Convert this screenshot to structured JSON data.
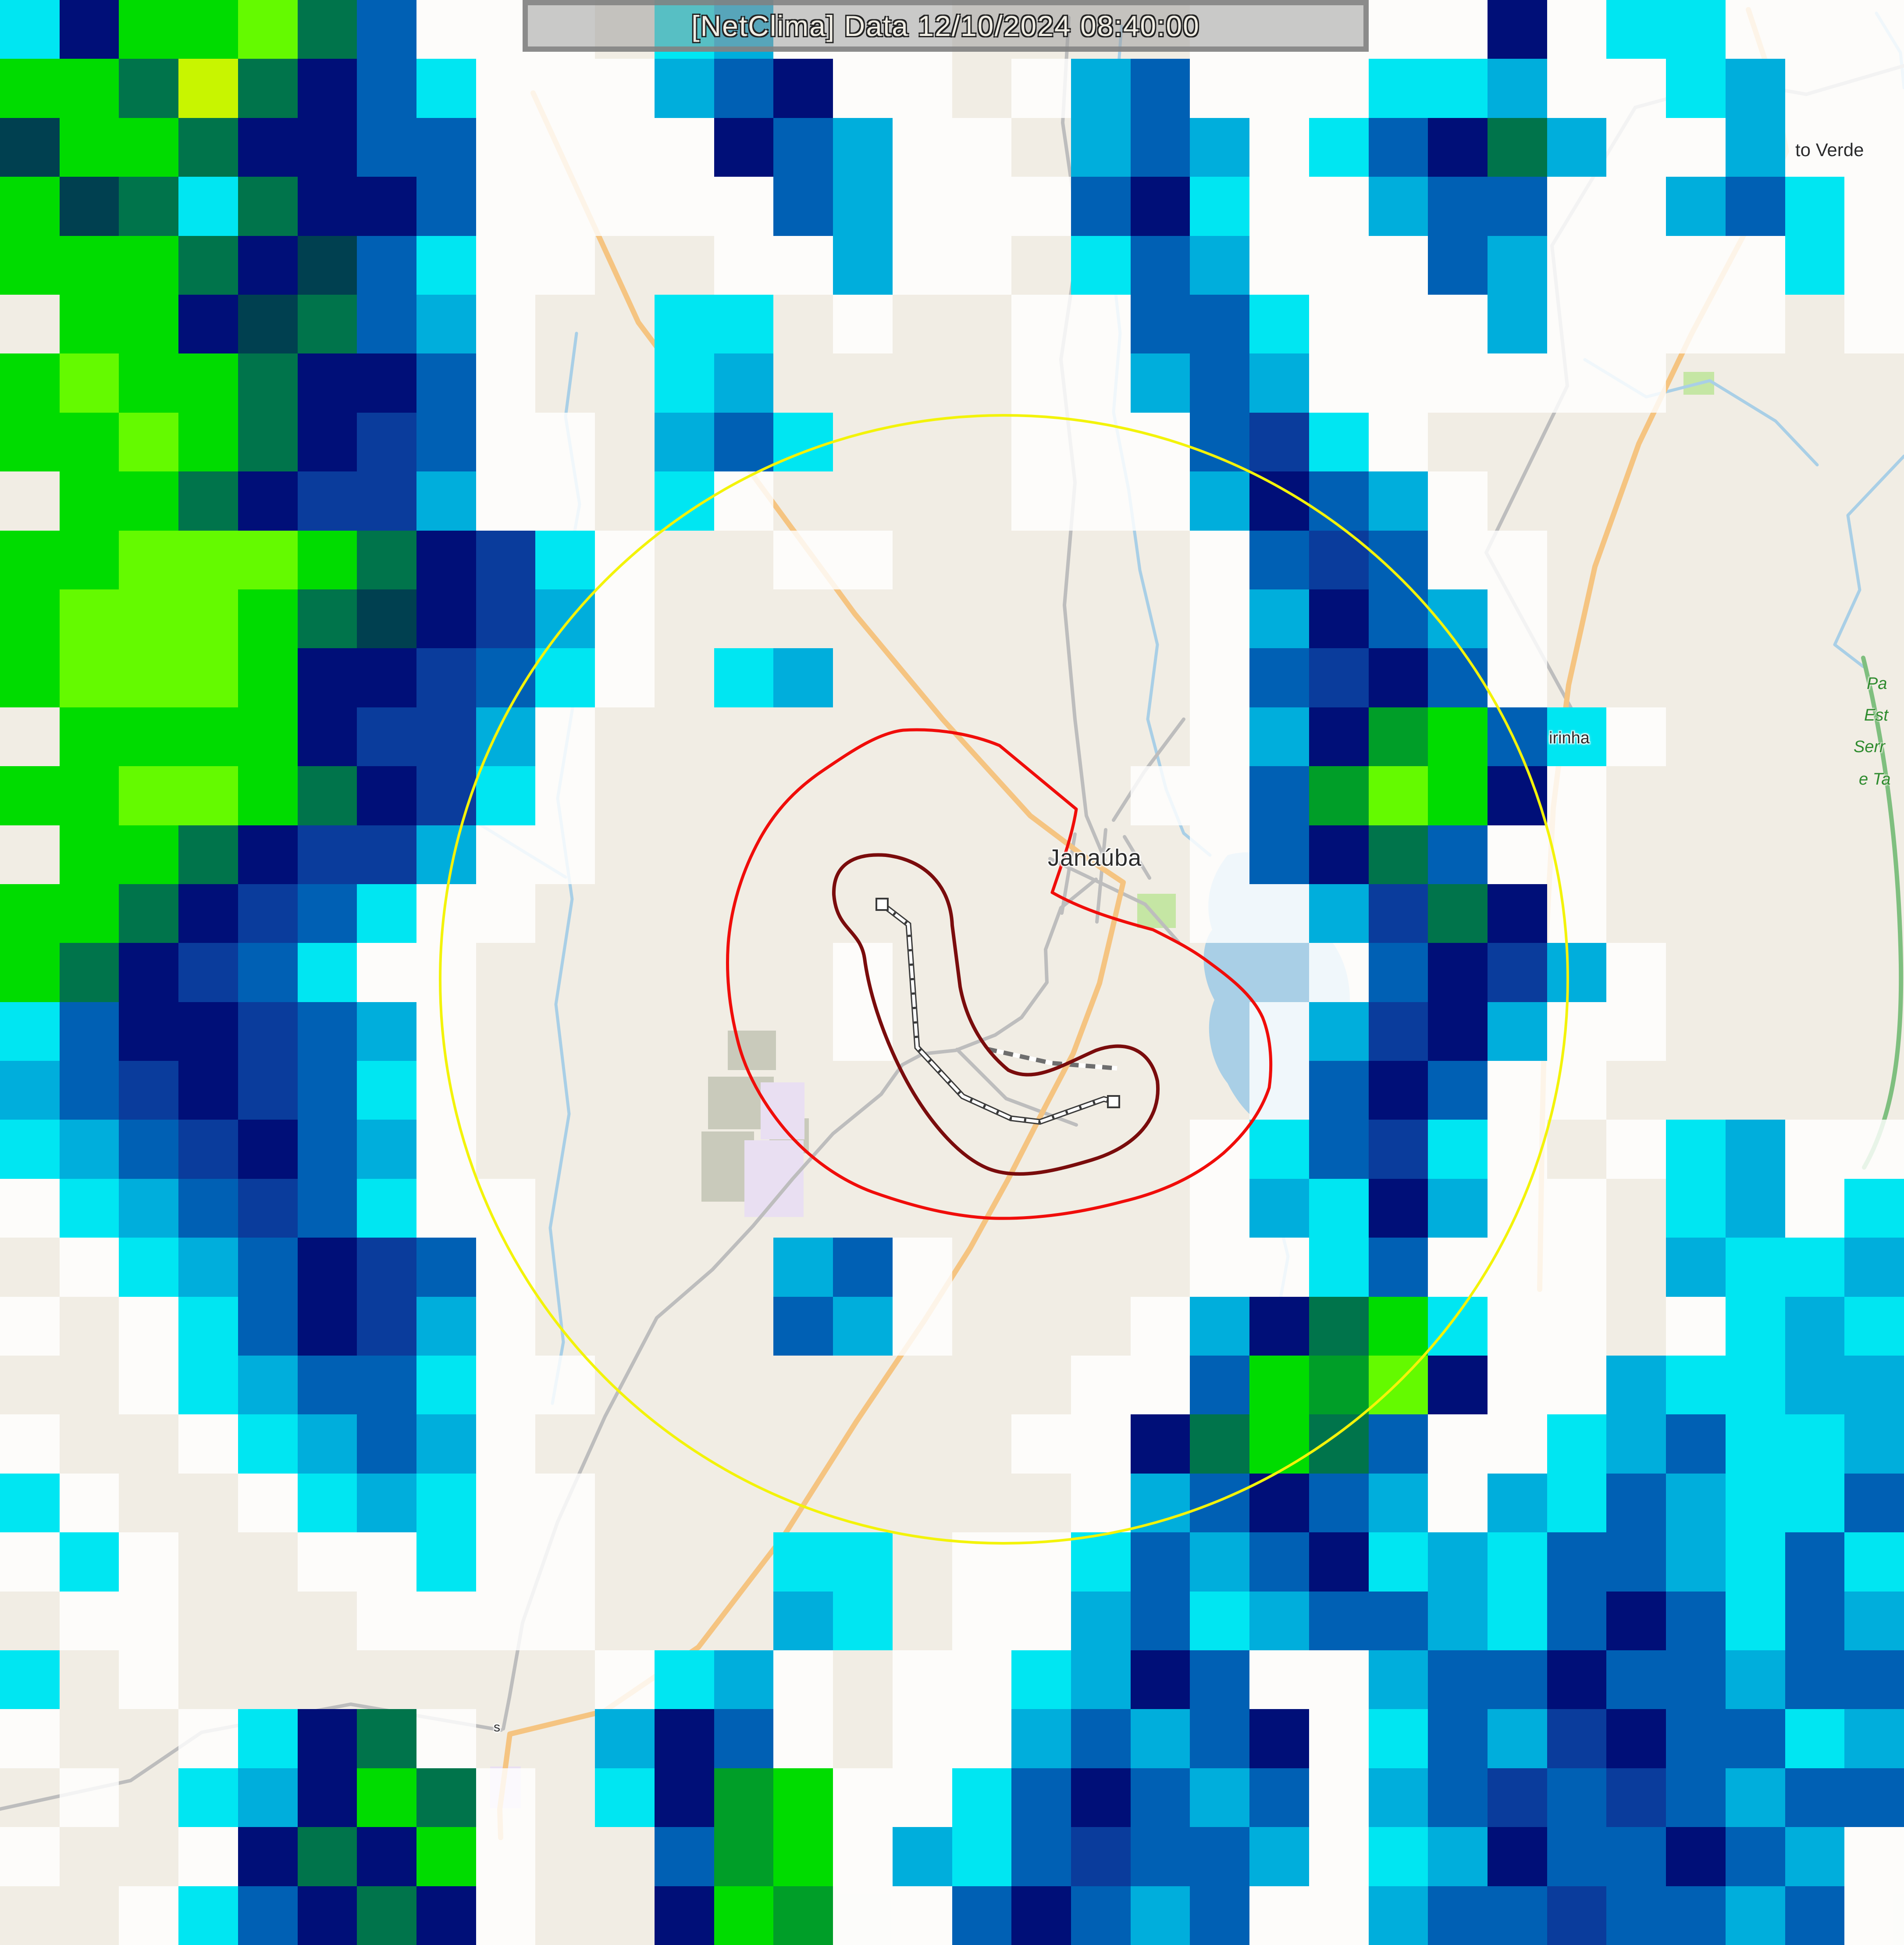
{
  "header": {
    "text": "[NetClima] Data 12/10/2024 08:40:00"
  },
  "map": {
    "labels": {
      "city": "Janaúba",
      "town_northeast": "to Verde",
      "town_east": "irinha",
      "road_label_south": "s",
      "park_label_lines": [
        "Pa",
        "Est",
        "Serr",
        "e Ta"
      ]
    },
    "colors": {
      "land": "#F1EDE4",
      "water": "#A9CFE6",
      "road_primary": "#F5C481",
      "road_minor": "#BDBDBD",
      "scenic_route_green": "#7FBF7F",
      "range_ring_yellow": "#F3F309",
      "contour_outer_red": "#F00D0A",
      "contour_inner_dark_red": "#7A0C0C",
      "city_label": "#2B2B2B",
      "park_label_green": "#2E8B2E",
      "header_bar_border": "#8F8F8F",
      "header_text": "#EFECE3",
      "urban_khaki": "#C9CABB",
      "urban_lavender": "#E9DFF2",
      "park_fill": "#C5E6A4"
    }
  },
  "radar": {
    "cols": 32,
    "rows": 33,
    "palette": {
      ".": "transparent",
      "w": "rgba(255,255,255,0.82)",
      "c": "#00E6F2",
      "s": "#00AEDC",
      "b": "#0060B4",
      "B": "#0A3C9C",
      "N": "#000F78",
      "T": "#004050",
      "g": "#00DC00",
      "G": "#009E28",
      "l": "#64FA00",
      "L": "#C8F500",
      "d": "#00744B"
    },
    "palette_names": {
      "w": "very light precip (white)",
      "c": "cyan",
      "s": "sky blue",
      "b": "blue",
      "B": "royal navy",
      "N": "dark navy",
      "T": "dark teal",
      "g": "green",
      "G": "medium green",
      "l": "lime",
      "L": "yellow-green",
      "d": "dark green"
    },
    "grid": [
      "cNggldbwww.cswww....wwwwwNwccwww",
      "ggdLdNbcwwwsbNww.wsbwwwccswwcsww",
      "TggdNNbbwwwwNbsww.sbswcbNdswwsww",
      "gTdcdNNbwwwwwbswwwbNcwwsbbwwsbcw",
      "gggdNTbcww..wwsww.cbswwwbswwwwcw",
      ".ggNTdbsw..cc.w..wwbbcwwwswwww.w",
      "glggdNNbw..cs....wwsbswwwwww....",
      "gglgdNBbww.sbc...wwwbBcw........",
      ".ggdNBBsww.cw....wwwsNbsw.......",
      "gglllgdNBcw..ww.....wbBbww......",
      "glllgdTNBsw.........wsNbsw......",
      "glllgNNBbcw.cs......wbBNbw......",
      ".ggggNBBsw..........wsNGgbcw....",
      "ggllgdNBcw.........wwbGlgNw.....",
      ".ggdNBBsww..........wbNdbww.....",
      "ggdNBbcww...........wwsBdNw.....",
      "gdNBbcww......w.......wbNBsw....",
      "cbNNBbsw......w......wsBNsww....",
      "sbBNBbcw.............wbNbww.....",
      "csbBNbsw............wcbBcw.wcsww",
      "wcsbBbcww...........wscNsww.cswc",
      ".wcsbNBbw....sbw....wwcbwww.sccs",
      "w.wcbNBsw....bsw...wsNdgcww.wcsc",
      "..wcsbbcww........wwbgGlNwwsccss",
      "w..wcsbsw........wwNdgdbwwcsbccs",
      "cw..wcscww........wsbNbswscbsccb",
      "wcw..wwcww...cc.wwcbsbNcscbbscbc",
      ".ww...wwww...sc.wwsbcsbbscbNbcbs",
      "c.w.......wcsw.wwcsNbwwsbbNbbsbb",
      "w..wcNdw..sNbw.wwsbsbNwcbsBNbbcs",
      ".w.csNgdw.cNGgwwcbNbsbwsbBbBbsbb",
      "w..wNdNgw..bGgwscbBbbswcsNbbNbsw",
      "..wcbNdNw..NgGwwbNbsbwwsbbBbbsbw"
    ]
  }
}
